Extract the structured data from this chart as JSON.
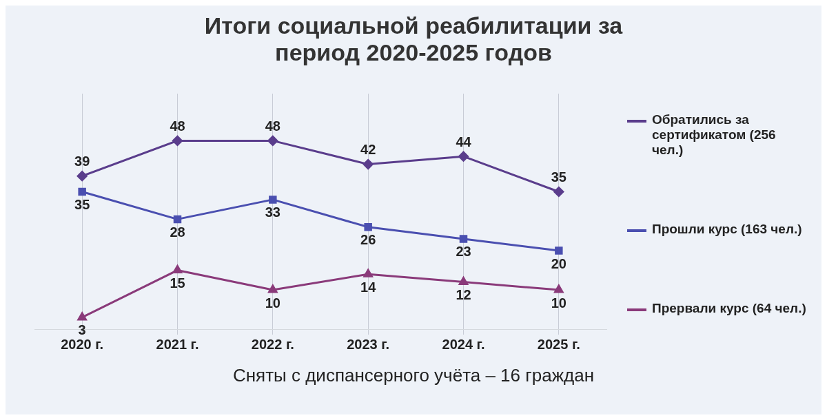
{
  "chart_data": {
    "type": "line",
    "title": "Итоги социальной реабилитации за период 2020-2025 годов",
    "categories": [
      "2020 г.",
      "2021 г.",
      "2022 г.",
      "2023 г.",
      "2024 г.",
      "2025 г."
    ],
    "series": [
      {
        "name": "Обратились за сертификатом (256 чел.)",
        "color": "#5a3d8c",
        "marker": "diamond",
        "values": [
          39,
          48,
          48,
          42,
          44,
          35
        ]
      },
      {
        "name": "Прошли курс (163 чел.)",
        "color": "#4a4fb0",
        "marker": "square",
        "values": [
          35,
          28,
          33,
          26,
          23,
          20
        ]
      },
      {
        "name": "Прервали курс (64 чел.)",
        "color": "#8a3a7a",
        "marker": "triangle",
        "values": [
          3,
          15,
          10,
          14,
          12,
          10
        ]
      }
    ],
    "data_labels": true,
    "grid": "x",
    "legend": "right",
    "line_style": "solid",
    "annotations": [
      "Сняты с диспансерного учёта – 16 граждан"
    ]
  }
}
